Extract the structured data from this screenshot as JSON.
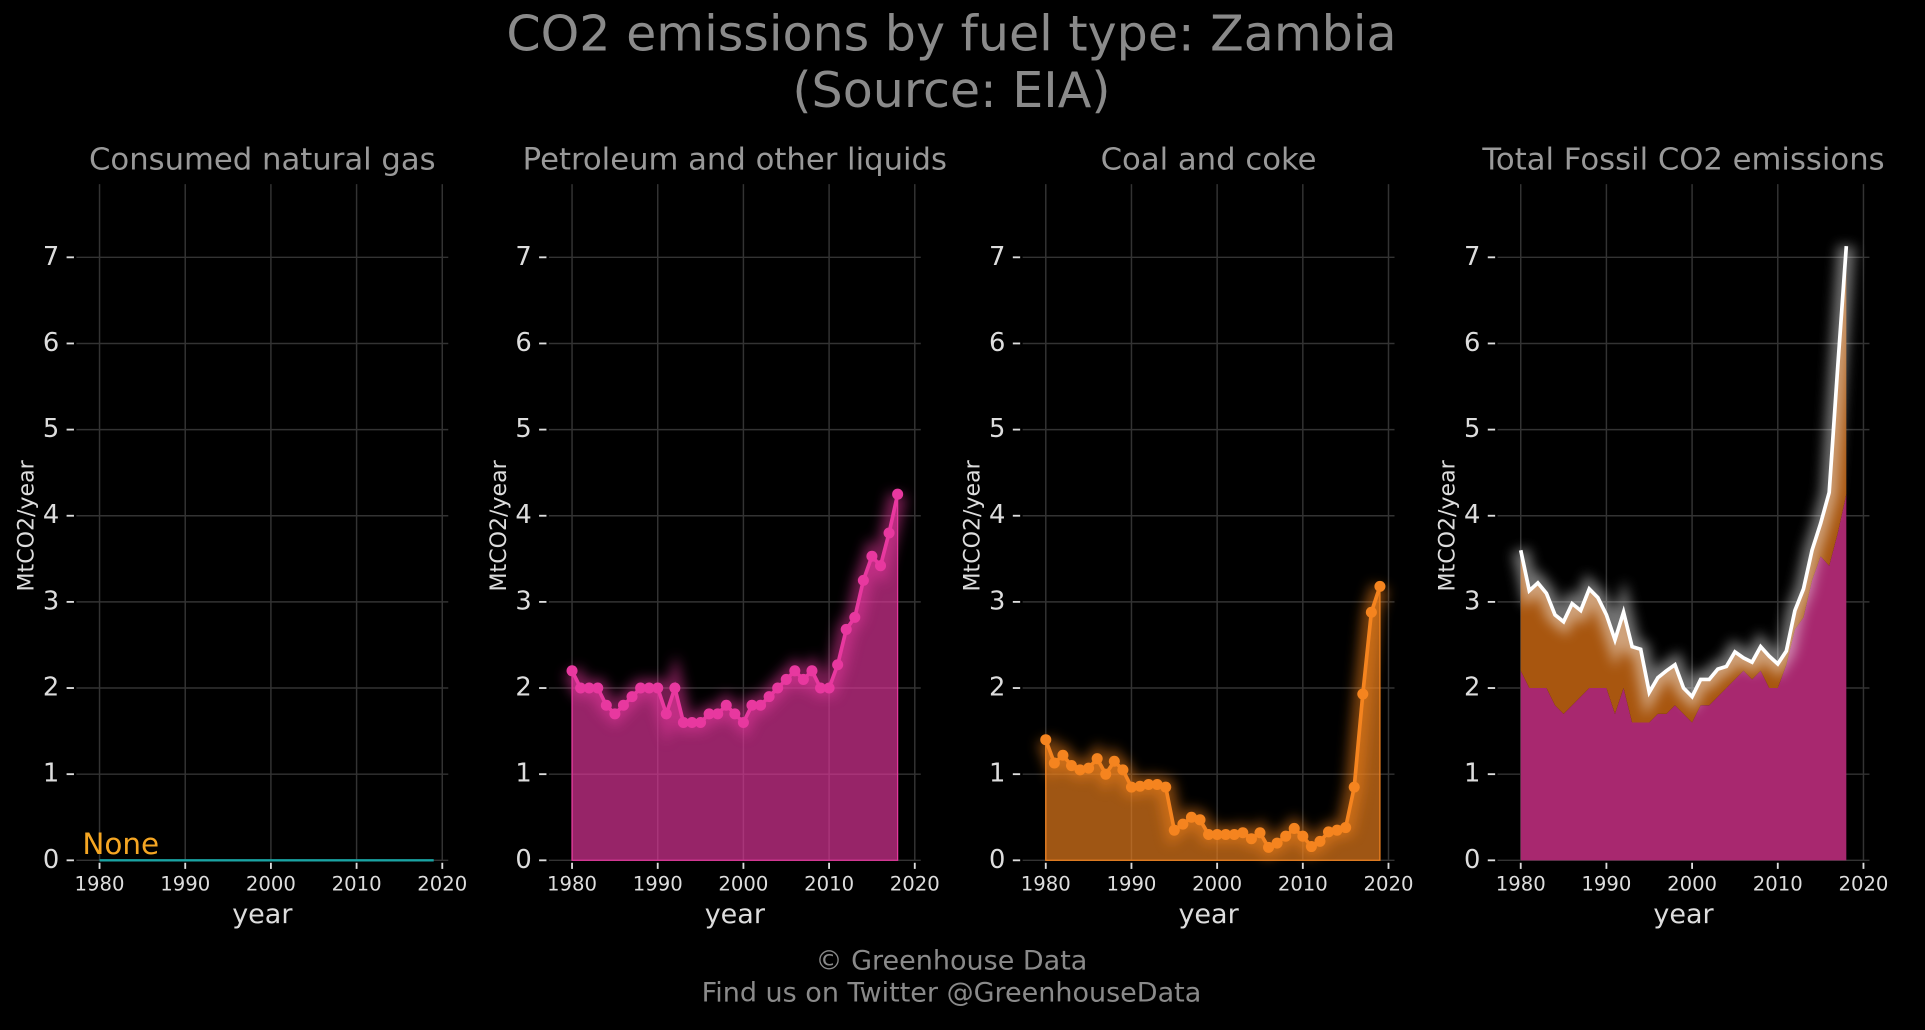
{
  "title": "CO2 emissions by fuel type: Zambia",
  "subtitle": "(Source: EIA)",
  "footer": [
    "© Greenhouse Data",
    "Find us on Twitter @GreenhouseData"
  ],
  "chart_data": [
    {
      "type": "line",
      "title": "Consumed natural gas",
      "xlabel": "year",
      "ylabel": "MtCO2/year",
      "annotation": "None",
      "annotation_color": "#f5a623",
      "x": [
        1980,
        1981,
        1982,
        1983,
        1984,
        1985,
        1986,
        1987,
        1988,
        1989,
        1990,
        1991,
        1992,
        1993,
        1994,
        1995,
        1996,
        1997,
        1998,
        1999,
        2000,
        2001,
        2002,
        2003,
        2004,
        2005,
        2006,
        2007,
        2008,
        2009,
        2010,
        2011,
        2012,
        2013,
        2014,
        2015,
        2016,
        2017,
        2018,
        2019
      ],
      "values": [
        0,
        0,
        0,
        0,
        0,
        0,
        0,
        0,
        0,
        0,
        0,
        0,
        0,
        0,
        0,
        0,
        0,
        0,
        0,
        0,
        0,
        0,
        0,
        0,
        0,
        0,
        0,
        0,
        0,
        0,
        0,
        0,
        0,
        0,
        0,
        0,
        0,
        0,
        0,
        0
      ],
      "color": "#1aa3a3",
      "xlim": [
        1977.3,
        2020.7
      ],
      "ylim": [
        0,
        7.85
      ],
      "xticks": [
        1980,
        1990,
        2000,
        2010,
        2020
      ],
      "yticks": [
        0,
        1,
        2,
        3,
        4,
        5,
        6,
        7
      ],
      "grid": true
    },
    {
      "type": "area",
      "title": "Petroleum and other liquids",
      "xlabel": "year",
      "ylabel": "MtCO2/year",
      "x": [
        1980,
        1981,
        1982,
        1983,
        1984,
        1985,
        1986,
        1987,
        1988,
        1989,
        1990,
        1991,
        1992,
        1993,
        1994,
        1995,
        1996,
        1997,
        1998,
        1999,
        2000,
        2001,
        2002,
        2003,
        2004,
        2005,
        2006,
        2007,
        2008,
        2009,
        2010,
        2011,
        2012,
        2013,
        2014,
        2015,
        2016,
        2017,
        2018
      ],
      "values": [
        2.2,
        2.0,
        2.0,
        2.0,
        1.8,
        1.7,
        1.8,
        1.9,
        2.0,
        2.0,
        2.0,
        1.7,
        2.0,
        1.6,
        1.6,
        1.6,
        1.7,
        1.7,
        1.8,
        1.7,
        1.6,
        1.8,
        1.8,
        1.9,
        2.0,
        2.1,
        2.2,
        2.1,
        2.2,
        2.0,
        2.0,
        2.27,
        2.68,
        2.82,
        3.25,
        3.53,
        3.42,
        3.8,
        4.25
      ],
      "color": "#e8389f",
      "xlim": [
        1977.3,
        2020.7
      ],
      "ylim": [
        0,
        7.85
      ],
      "xticks": [
        1980,
        1990,
        2000,
        2010,
        2020
      ],
      "yticks": [
        0,
        1,
        2,
        3,
        4,
        5,
        6,
        7
      ],
      "grid": true,
      "markers": true
    },
    {
      "type": "area",
      "title": "Coal and coke",
      "xlabel": "year",
      "ylabel": "MtCO2/year",
      "x": [
        1980,
        1981,
        1982,
        1983,
        1984,
        1985,
        1986,
        1987,
        1988,
        1989,
        1990,
        1991,
        1992,
        1993,
        1994,
        1995,
        1996,
        1997,
        1998,
        1999,
        2000,
        2001,
        2002,
        2003,
        2004,
        2005,
        2006,
        2007,
        2008,
        2009,
        2010,
        2011,
        2012,
        2013,
        2014,
        2015,
        2016,
        2017,
        2018,
        2019
      ],
      "values": [
        1.4,
        1.13,
        1.22,
        1.1,
        1.05,
        1.07,
        1.18,
        1.0,
        1.15,
        1.05,
        0.85,
        0.86,
        0.88,
        0.88,
        0.85,
        0.35,
        0.42,
        0.5,
        0.47,
        0.3,
        0.3,
        0.3,
        0.3,
        0.32,
        0.25,
        0.32,
        0.15,
        0.2,
        0.28,
        0.37,
        0.28,
        0.16,
        0.22,
        0.33,
        0.35,
        0.38,
        0.85,
        1.93,
        2.88,
        3.18
      ],
      "color": "#f5841f",
      "xlim": [
        1977.3,
        2020.7
      ],
      "ylim": [
        0,
        7.85
      ],
      "xticks": [
        1980,
        1990,
        2000,
        2010,
        2020
      ],
      "yticks": [
        0,
        1,
        2,
        3,
        4,
        5,
        6,
        7
      ],
      "grid": true,
      "markers": true
    },
    {
      "type": "stacked_area",
      "title": "Total Fossil CO2 emissions",
      "xlabel": "year",
      "ylabel": "MtCO2/year",
      "x": [
        1980,
        1981,
        1982,
        1983,
        1984,
        1985,
        1986,
        1987,
        1988,
        1989,
        1990,
        1991,
        1992,
        1993,
        1994,
        1995,
        1996,
        1997,
        1998,
        1999,
        2000,
        2001,
        2002,
        2003,
        2004,
        2005,
        2006,
        2007,
        2008,
        2009,
        2010,
        2011,
        2012,
        2013,
        2014,
        2015,
        2016,
        2017,
        2018
      ],
      "series": [
        {
          "color": "#a8286f",
          "values": [
            2.2,
            2.0,
            2.0,
            2.0,
            1.8,
            1.7,
            1.8,
            1.9,
            2.0,
            2.0,
            2.0,
            1.7,
            2.0,
            1.6,
            1.6,
            1.6,
            1.7,
            1.7,
            1.8,
            1.7,
            1.6,
            1.8,
            1.8,
            1.9,
            2.0,
            2.1,
            2.2,
            2.1,
            2.2,
            2.0,
            2.0,
            2.27,
            2.68,
            2.82,
            3.25,
            3.53,
            3.42,
            3.8,
            4.25
          ]
        },
        {
          "color": "#a8560f",
          "values": [
            1.4,
            1.13,
            1.22,
            1.1,
            1.05,
            1.07,
            1.18,
            1.0,
            1.15,
            1.05,
            0.85,
            0.86,
            0.88,
            0.88,
            0.85,
            0.35,
            0.42,
            0.5,
            0.47,
            0.3,
            0.3,
            0.3,
            0.3,
            0.32,
            0.25,
            0.32,
            0.15,
            0.2,
            0.28,
            0.37,
            0.28,
            0.16,
            0.22,
            0.33,
            0.35,
            0.38,
            0.85,
            1.93,
            2.88
          ]
        }
      ],
      "line_color": "#ffffff",
      "xlim": [
        1977.3,
        2020.7
      ],
      "ylim": [
        0,
        7.85
      ],
      "xticks": [
        1980,
        1990,
        2000,
        2010,
        2020
      ],
      "yticks": [
        0,
        1,
        2,
        3,
        4,
        5,
        6,
        7
      ],
      "grid": true
    }
  ]
}
